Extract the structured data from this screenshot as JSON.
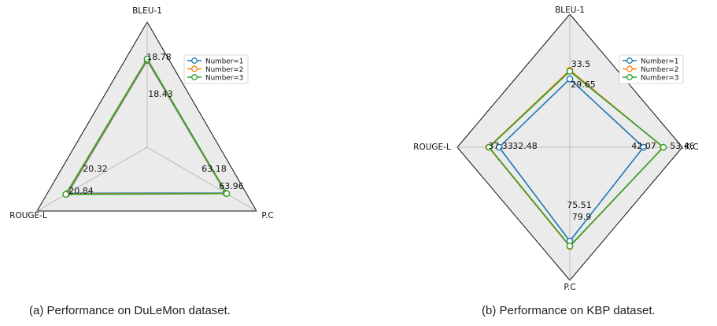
{
  "chart_data": [
    {
      "type": "radar",
      "axes": [
        "BLEU-1",
        "P.C",
        "ROUGE-L"
      ],
      "series": [
        {
          "name": "Number=1",
          "color": "#1f77b4",
          "values": [
            18.43,
            63.18,
            20.32
          ]
        },
        {
          "name": "Number=2",
          "color": "#ff7f0e",
          "values": [
            18.6,
            63.6,
            20.58
          ]
        },
        {
          "name": "Number=3",
          "color": "#2ca02c",
          "values": [
            18.78,
            63.96,
            20.84
          ]
        }
      ],
      "value_labels": [
        {
          "axis": "BLEU-1",
          "text": "18.78"
        },
        {
          "axis": "BLEU-1",
          "text": "18.43"
        },
        {
          "axis": "P.C",
          "text": "63.18"
        },
        {
          "axis": "P.C",
          "text": "63.96"
        },
        {
          "axis": "ROUGE-L",
          "text": "20.32"
        },
        {
          "axis": "ROUGE-L",
          "text": "20.84"
        }
      ],
      "legend_position": "top-right",
      "caption": "(a) Performance on DuLeMon dataset."
    },
    {
      "type": "radar",
      "axes": [
        "BLEU-1",
        "K.C",
        "P.C",
        "ROUGE-L"
      ],
      "series": [
        {
          "name": "Number=1",
          "color": "#1f77b4",
          "values": [
            29.65,
            42.07,
            75.51,
            32.48
          ]
        },
        {
          "name": "Number=2",
          "color": "#ff7f0e",
          "values": [
            33.5,
            53.3,
            79.9,
            37.33
          ]
        },
        {
          "name": "Number=3",
          "color": "#2ca02c",
          "values": [
            33.0,
            53.46,
            79.5,
            37.1
          ]
        }
      ],
      "value_labels": [
        {
          "axis": "BLEU-1",
          "text": "33.5"
        },
        {
          "axis": "BLEU-1",
          "text": "29.65"
        },
        {
          "axis": "K.C",
          "text": "42.07"
        },
        {
          "axis": "K.C",
          "text": "53.46"
        },
        {
          "axis": "P.C",
          "text": "75.51"
        },
        {
          "axis": "P.C",
          "text": "79.9"
        },
        {
          "axis": "ROUGE-L",
          "text": "37.33"
        },
        {
          "axis": "ROUGE-L",
          "text": "32.48"
        }
      ],
      "legend_position": "top-right",
      "caption": "(b) Performance on KBP dataset."
    }
  ]
}
